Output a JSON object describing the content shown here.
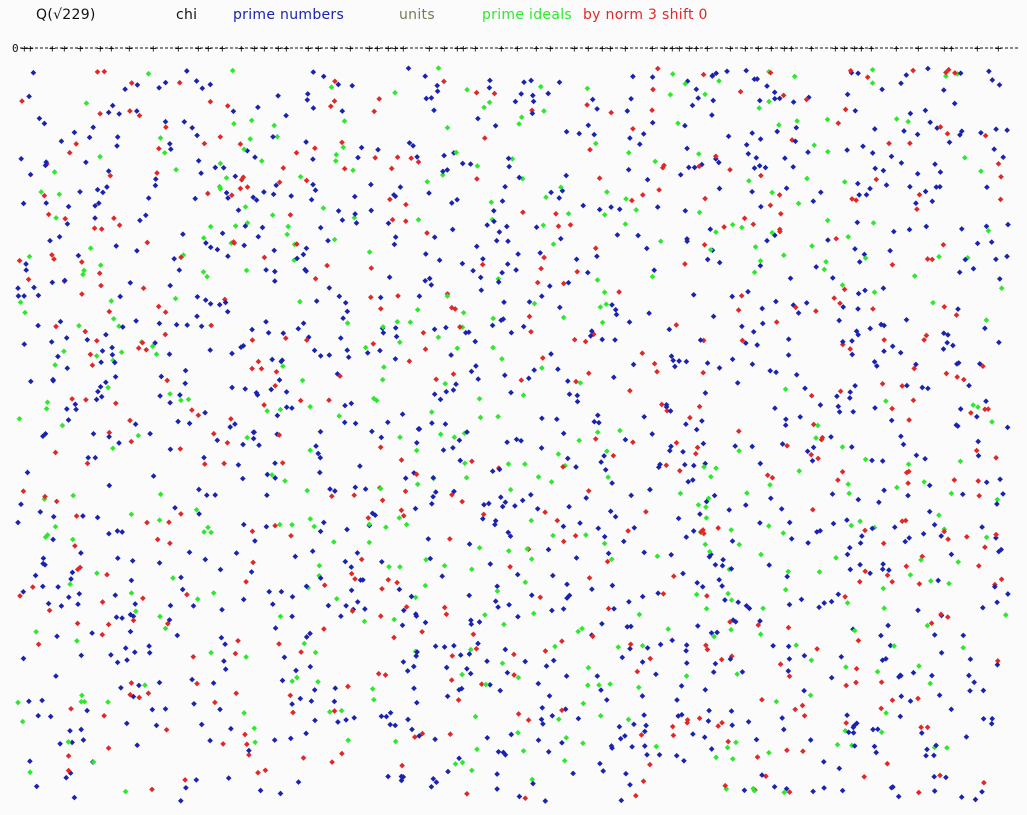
{
  "legend": {
    "field": "Q(√229)",
    "chi": "chi",
    "prime_numbers": "prime numbers",
    "units": "units",
    "prime_ideals": "prime ideals",
    "by_norm": "by norm 3 shift 0"
  },
  "axis": {
    "zero_label": "0"
  },
  "colors": {
    "background": "#fbfbfb",
    "text": "#111111",
    "prime_numbers": "#1a22b0",
    "units": "#7a7a52",
    "prime_ideals": "#2ee82e",
    "norm": "#e02828"
  }
}
